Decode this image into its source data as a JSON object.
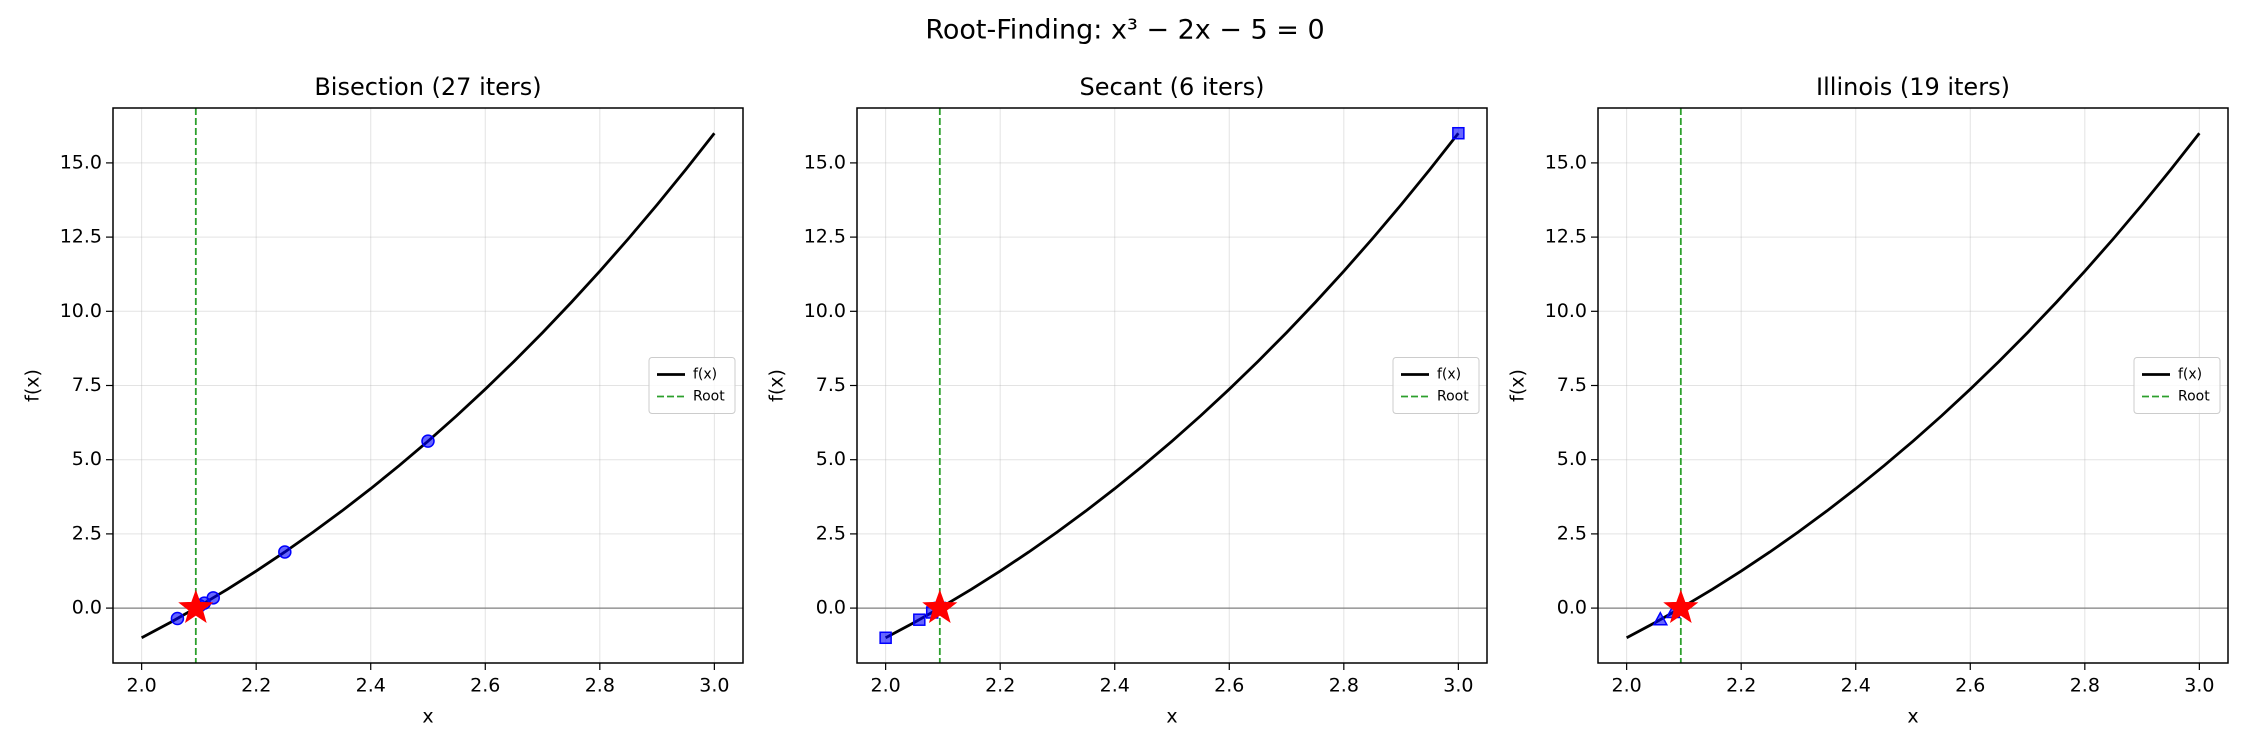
{
  "title": "Root-Finding: x³ − 2x − 5 = 0",
  "chart_data": [
    {
      "type": "line",
      "title": "Bisection (27 iters)",
      "xlabel": "x",
      "ylabel": "f(x)",
      "xlim": [
        1.95,
        3.05
      ],
      "ylim": [
        -1.85,
        16.85
      ],
      "xticks": [
        {
          "value": 2,
          "label": "2.0"
        },
        2.2,
        2.4,
        2.6,
        2.8,
        {
          "value": 3,
          "label": "3.0"
        }
      ],
      "yticks": [
        {
          "value": 0,
          "label": "0.0"
        },
        2.5,
        {
          "value": 5,
          "label": "5.0"
        },
        7.5,
        {
          "value": 10,
          "label": "10.0"
        },
        12.5,
        {
          "value": 15,
          "label": "15.0"
        }
      ],
      "grid": true,
      "legend": "center right",
      "axhline": 0,
      "series": [
        {
          "name": "f(x)",
          "color": "#000000",
          "x": [
            2.0,
            2.05,
            2.1,
            2.15,
            2.2,
            2.25,
            2.3,
            2.35,
            2.4,
            2.45,
            2.5,
            2.55,
            2.6,
            2.65,
            2.7,
            2.75,
            2.8,
            2.85,
            2.9,
            2.95,
            3.0
          ],
          "values": [
            -1,
            -0.485,
            0.061,
            0.638,
            1.248,
            1.891,
            2.567,
            3.278,
            4.024,
            4.806,
            5.625,
            6.481,
            7.376,
            8.31,
            9.283,
            10.297,
            11.352,
            12.449,
            13.589,
            14.772,
            16
          ]
        },
        {
          "name": "Root",
          "color": "#2ca02c",
          "kind": "vline",
          "x": 2.0946
        }
      ],
      "iterates": {
        "marker": "circle",
        "color": "#0000ff",
        "x": [
          2.5,
          2.25,
          2.125,
          2.0625,
          2.09375,
          2.109375,
          2.1015625,
          2.09765625
        ],
        "values": [
          5.625,
          1.891,
          0.346,
          -0.351,
          -0.009,
          0.167,
          0.079,
          0.035
        ]
      },
      "root_point": {
        "x": 2.0946,
        "value": 0,
        "color": "#ff0000"
      }
    },
    {
      "type": "line",
      "title": "Secant (6 iters)",
      "xlabel": "x",
      "ylabel": "f(x)",
      "xlim": [
        1.95,
        3.05
      ],
      "ylim": [
        -1.85,
        16.85
      ],
      "xticks": [
        {
          "value": 2,
          "label": "2.0"
        },
        2.2,
        2.4,
        2.6,
        2.8,
        {
          "value": 3,
          "label": "3.0"
        }
      ],
      "yticks": [
        {
          "value": 0,
          "label": "0.0"
        },
        2.5,
        {
          "value": 5,
          "label": "5.0"
        },
        7.5,
        {
          "value": 10,
          "label": "10.0"
        },
        12.5,
        {
          "value": 15,
          "label": "15.0"
        }
      ],
      "grid": true,
      "legend": "center right",
      "axhline": 0,
      "series": [
        {
          "name": "f(x)",
          "color": "#000000",
          "x": [
            2.0,
            2.05,
            2.1,
            2.15,
            2.2,
            2.25,
            2.3,
            2.35,
            2.4,
            2.45,
            2.5,
            2.55,
            2.6,
            2.65,
            2.7,
            2.75,
            2.8,
            2.85,
            2.9,
            2.95,
            3.0
          ],
          "values": [
            -1,
            -0.485,
            0.061,
            0.638,
            1.248,
            1.891,
            2.567,
            3.278,
            4.024,
            4.806,
            5.625,
            6.481,
            7.376,
            8.31,
            9.283,
            10.297,
            11.352,
            12.449,
            13.589,
            14.772,
            16
          ]
        },
        {
          "name": "Root",
          "color": "#2ca02c",
          "kind": "vline",
          "x": 2.0946
        }
      ],
      "iterates": {
        "marker": "square",
        "color": "#0000ff",
        "x": [
          2.0,
          3.0,
          2.0588,
          2.0813,
          2.0948,
          2.0946
        ],
        "values": [
          -1,
          16,
          -0.391,
          -0.148,
          0.003,
          0
        ]
      },
      "root_point": {
        "x": 2.0946,
        "value": 0,
        "color": "#ff0000"
      }
    },
    {
      "type": "line",
      "title": "Illinois (19 iters)",
      "xlabel": "x",
      "ylabel": "f(x)",
      "xlim": [
        1.95,
        3.05
      ],
      "ylim": [
        -1.85,
        16.85
      ],
      "xticks": [
        {
          "value": 2,
          "label": "2.0"
        },
        2.2,
        2.4,
        2.6,
        2.8,
        {
          "value": 3,
          "label": "3.0"
        }
      ],
      "yticks": [
        {
          "value": 0,
          "label": "0.0"
        },
        2.5,
        {
          "value": 5,
          "label": "5.0"
        },
        7.5,
        {
          "value": 10,
          "label": "10.0"
        },
        12.5,
        {
          "value": 15,
          "label": "15.0"
        }
      ],
      "grid": true,
      "legend": "center right",
      "axhline": 0,
      "series": [
        {
          "name": "f(x)",
          "color": "#000000",
          "x": [
            2.0,
            2.05,
            2.1,
            2.15,
            2.2,
            2.25,
            2.3,
            2.35,
            2.4,
            2.45,
            2.5,
            2.55,
            2.6,
            2.65,
            2.7,
            2.75,
            2.8,
            2.85,
            2.9,
            2.95,
            3.0
          ],
          "values": [
            -1,
            -0.485,
            0.061,
            0.638,
            1.248,
            1.891,
            2.567,
            3.278,
            4.024,
            4.806,
            5.625,
            6.481,
            7.376,
            8.31,
            9.283,
            10.297,
            11.352,
            12.449,
            13.589,
            14.772,
            16
          ]
        },
        {
          "name": "Root",
          "color": "#2ca02c",
          "kind": "vline",
          "x": 2.0946
        }
      ],
      "iterates": {
        "marker": "triangle",
        "color": "#0000ff",
        "x": [
          2.0588,
          2.0813,
          2.0945,
          2.0946
        ],
        "values": [
          -0.391,
          -0.148,
          -0.001,
          0
        ]
      },
      "root_point": {
        "x": 2.0946,
        "value": 0,
        "color": "#ff0000"
      }
    }
  ]
}
